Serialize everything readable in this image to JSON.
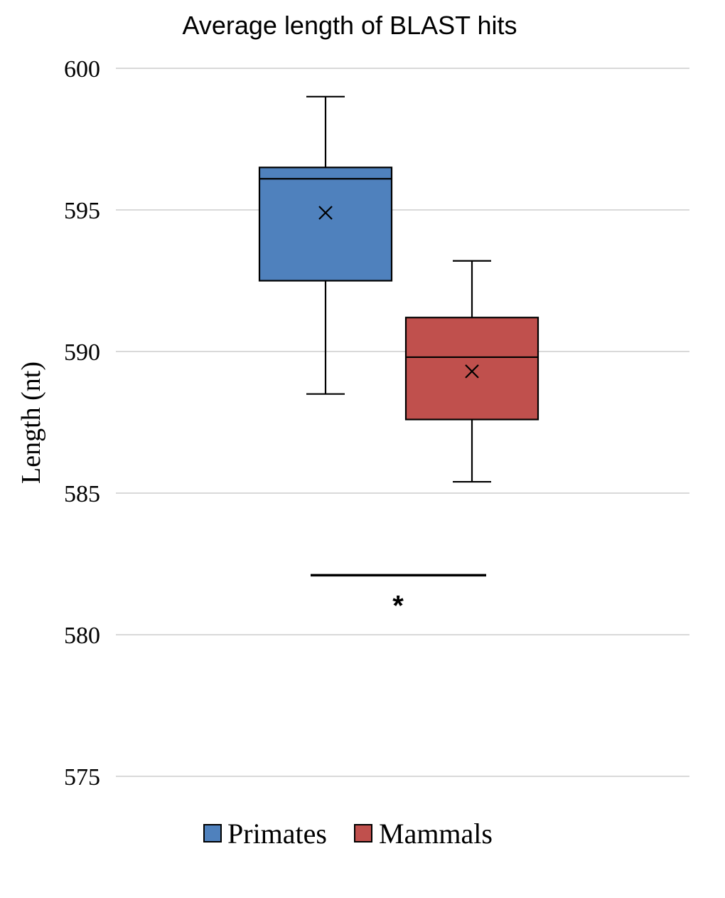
{
  "chart_data": {
    "type": "box",
    "title": "Average length of BLAST hits",
    "xlabel": "",
    "ylabel": "Length (nt)",
    "ylim": [
      575,
      600
    ],
    "yticks": [
      575,
      580,
      585,
      590,
      595,
      600
    ],
    "grid": true,
    "legend_position": "bottom",
    "series": [
      {
        "name": "Primates",
        "color": "#4f81bd",
        "min": 588.5,
        "q1": 592.5,
        "median": 596.1,
        "q3": 596.5,
        "max": 599.0,
        "mean": 594.9
      },
      {
        "name": "Mammals",
        "color": "#c0504d",
        "min": 585.4,
        "q1": 587.6,
        "median": 589.8,
        "q3": 591.2,
        "max": 593.2,
        "mean": 589.3
      }
    ],
    "significance": {
      "label": "*",
      "y": 582.1
    }
  }
}
